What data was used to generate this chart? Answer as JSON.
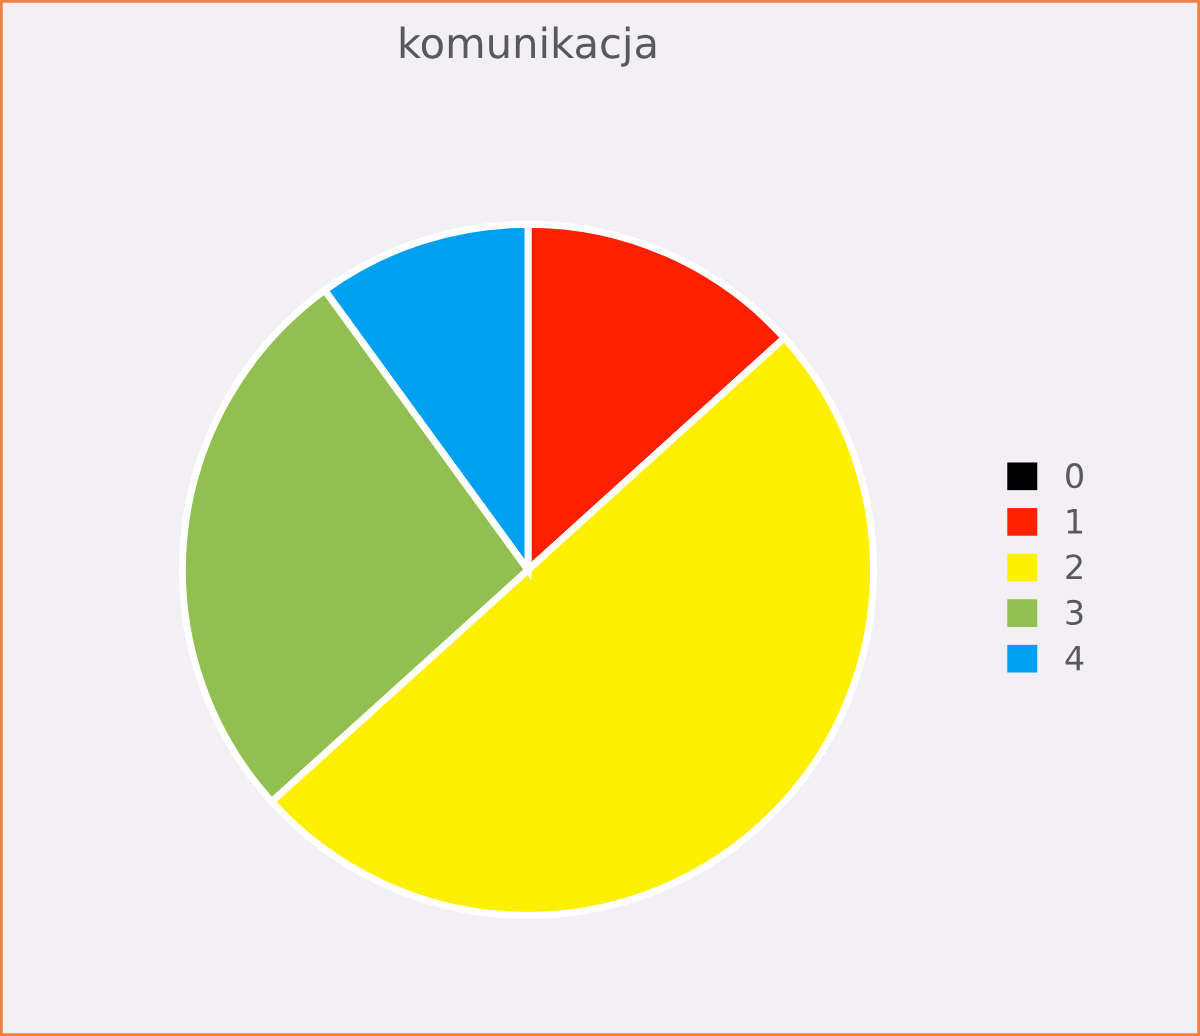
{
  "chart_data": {
    "type": "pie",
    "title": "komunikacja",
    "categories": [
      "0",
      "1",
      "2",
      "3",
      "4"
    ],
    "values": [
      0,
      13.3,
      50,
      26.7,
      10
    ],
    "colors": [
      "#000000",
      "#ff2000",
      "#fff000",
      "#92c050",
      "#00a0f0"
    ],
    "legend": "right"
  }
}
